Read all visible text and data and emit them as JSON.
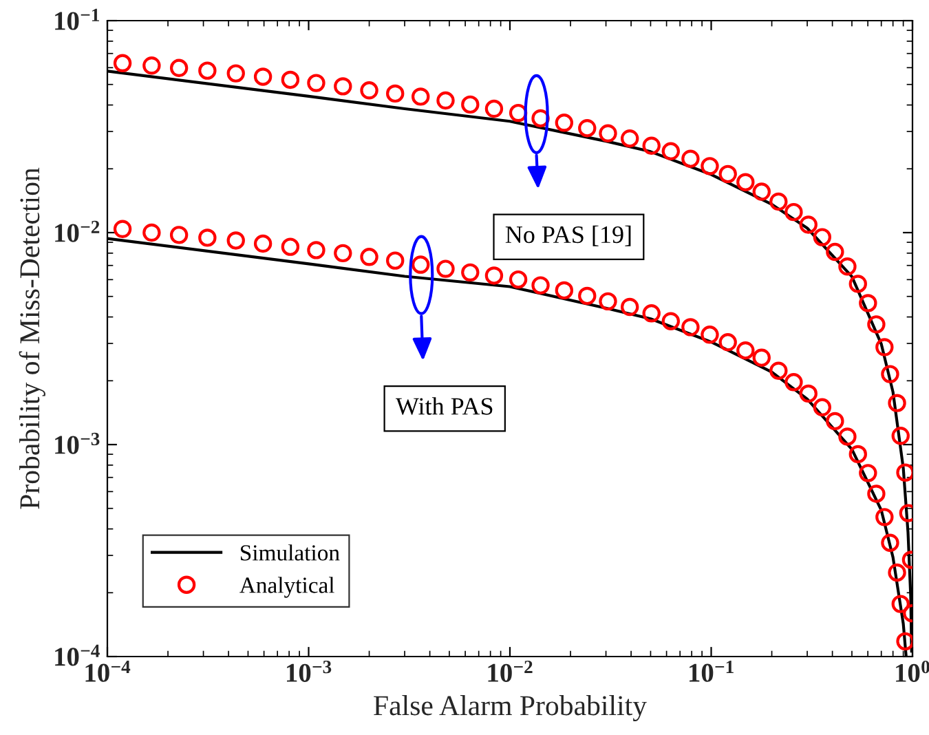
{
  "chart_data": {
    "type": "line",
    "xlabel": "False Alarm Probability",
    "ylabel": "Probability of Miss-Detection",
    "log": "xy",
    "xlim": [
      0.0001,
      1
    ],
    "ylim": [
      0.0001,
      0.1
    ],
    "xticks": [
      {
        "value": 0.0001,
        "label": "10$^{−4}$"
      },
      {
        "value": 0.001,
        "label": "10$^{−3}$"
      },
      {
        "value": 0.01,
        "label": "10$^{−2}$"
      },
      {
        "value": 0.1,
        "label": "10$^{−1}$"
      },
      {
        "value": 1,
        "label": "10$^{0}$"
      }
    ],
    "yticks": [
      {
        "value": 0.0001,
        "label": "10$^{−4}$"
      },
      {
        "value": 0.001,
        "label": "10$^{−3}$"
      },
      {
        "value": 0.01,
        "label": "10$^{−2}$"
      },
      {
        "value": 0.1,
        "label": "10$^{−1}$"
      }
    ],
    "grid": false,
    "legend": "bottom left",
    "series": [
      {
        "name": "Simulation",
        "color": "#000000",
        "marker": "none",
        "line_style": "solid",
        "x": [
          0.0001,
          0.001,
          0.003,
          0.01,
          0.03,
          0.05,
          0.1,
          0.2,
          0.3,
          0.5,
          0.7,
          0.8,
          0.9,
          0.95,
          0.98,
          0.99
        ],
        "values": [
          0.0578,
          0.044,
          0.0384,
          0.0335,
          0.027,
          0.0241,
          0.0188,
          0.0136,
          0.0105,
          0.0062,
          0.00298,
          0.00177,
          0.000776,
          0.000386,
          0.000192,
          0.000106
        ]
      },
      {
        "color": "#000000",
        "marker": "none",
        "line_style": "solid",
        "x": [
          0.0001,
          0.001,
          0.003,
          0.01,
          0.03,
          0.05,
          0.1,
          0.2,
          0.3,
          0.5,
          0.7,
          0.8,
          0.9,
          0.93
        ],
        "values": [
          0.00938,
          0.00712,
          0.00622,
          0.00556,
          0.0044,
          0.00392,
          0.00305,
          0.0022,
          0.00164,
          0.00095,
          0.00049,
          0.000294,
          0.000143,
          0.0001
        ]
      },
      {
        "name": "Analytical",
        "type": "scatter",
        "color": "#ff0000",
        "marker": "circle",
        "x": [
          0.000119,
          0.000166,
          0.000227,
          0.000314,
          0.000435,
          0.000593,
          0.000811,
          0.00109,
          0.00148,
          0.002,
          0.00269,
          0.0036,
          0.00479,
          0.00635,
          0.00834,
          0.011,
          0.0142,
          0.0186,
          0.0242,
          0.0307,
          0.0394,
          0.0505,
          0.063,
          0.0789,
          0.0984,
          0.121,
          0.148,
          0.178,
          0.216,
          0.257,
          0.304,
          0.356,
          0.412,
          0.475,
          0.536,
          0.601,
          0.661,
          0.726,
          0.774,
          0.838,
          0.873,
          0.921,
          0.953,
          0.984,
          0.995
        ],
        "values": [
          0.063,
          0.0614,
          0.0598,
          0.0581,
          0.0564,
          0.0544,
          0.0526,
          0.0508,
          0.049,
          0.0469,
          0.0453,
          0.0438,
          0.042,
          0.0402,
          0.0384,
          0.0367,
          0.0346,
          0.033,
          0.0311,
          0.0294,
          0.0278,
          0.0257,
          0.0242,
          0.0223,
          0.0206,
          0.0189,
          0.0173,
          0.0156,
          0.014,
          0.0125,
          0.0109,
          0.00952,
          0.00811,
          0.00692,
          0.00573,
          0.00465,
          0.00369,
          0.00288,
          0.00215,
          0.00157,
          0.0011,
          0.000738,
          0.000475,
          0.000286,
          0.00016
        ]
      },
      {
        "type": "scatter",
        "color": "#ff0000",
        "marker": "circle",
        "x": [
          0.000119,
          0.000166,
          0.000227,
          0.000314,
          0.000435,
          0.000593,
          0.000811,
          0.00109,
          0.00148,
          0.002,
          0.00269,
          0.0036,
          0.00479,
          0.00635,
          0.00834,
          0.011,
          0.0142,
          0.0186,
          0.0242,
          0.0307,
          0.0394,
          0.0505,
          0.063,
          0.0789,
          0.0984,
          0.121,
          0.148,
          0.178,
          0.216,
          0.257,
          0.304,
          0.356,
          0.412,
          0.475,
          0.536,
          0.601,
          0.661,
          0.726,
          0.774,
          0.838,
          0.873,
          0.921
        ],
        "values": [
          0.0104,
          0.01,
          0.00975,
          0.00946,
          0.00918,
          0.00887,
          0.00857,
          0.00827,
          0.008,
          0.00768,
          0.00738,
          0.00706,
          0.00675,
          0.00649,
          0.00627,
          0.00601,
          0.00564,
          0.00534,
          0.00503,
          0.00474,
          0.00446,
          0.00416,
          0.00382,
          0.00358,
          0.0033,
          0.00304,
          0.00278,
          0.00257,
          0.00223,
          0.00197,
          0.00174,
          0.0015,
          0.00129,
          0.00109,
          0.000901,
          0.000734,
          0.000586,
          0.000455,
          0.000344,
          0.000249,
          0.000177,
          0.000118
        ]
      }
    ],
    "annotations": [
      "No PAS [19]",
      "With PAS"
    ]
  }
}
